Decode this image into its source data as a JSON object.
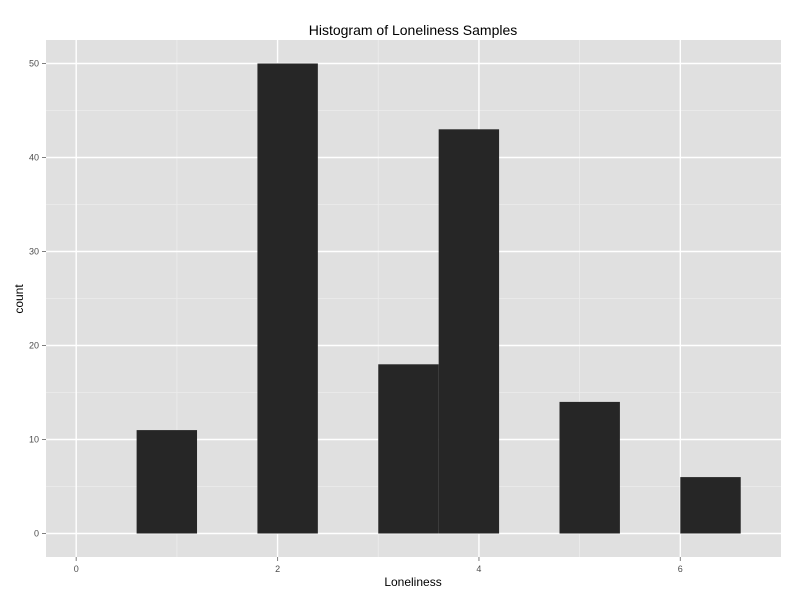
{
  "chart_data": {
    "type": "bar",
    "title": "Histogram of Loneliness Samples",
    "xlabel": "Loneliness",
    "ylabel": "count",
    "xlim": [
      -0.3,
      7.0
    ],
    "ylim": [
      -2.5,
      52.5
    ],
    "x_ticks": [
      0,
      2,
      4,
      6
    ],
    "y_ticks": [
      0,
      10,
      20,
      30,
      40,
      50
    ],
    "bins": [
      {
        "x0": 0.6,
        "x1": 1.2,
        "count": 11
      },
      {
        "x0": 1.8,
        "x1": 2.4,
        "count": 50
      },
      {
        "x0": 3.0,
        "x1": 3.6,
        "count": 18
      },
      {
        "x0": 3.6,
        "x1": 4.2,
        "count": 43
      },
      {
        "x0": 4.8,
        "x1": 5.4,
        "count": 14
      },
      {
        "x0": 6.0,
        "x1": 6.6,
        "count": 6
      }
    ],
    "colors": {
      "panel": "#e0e0e0",
      "grid_major": "#ffffff",
      "grid_minor": "#ececec",
      "bar": "#262626",
      "tick_text": "#4d4d4d"
    }
  }
}
